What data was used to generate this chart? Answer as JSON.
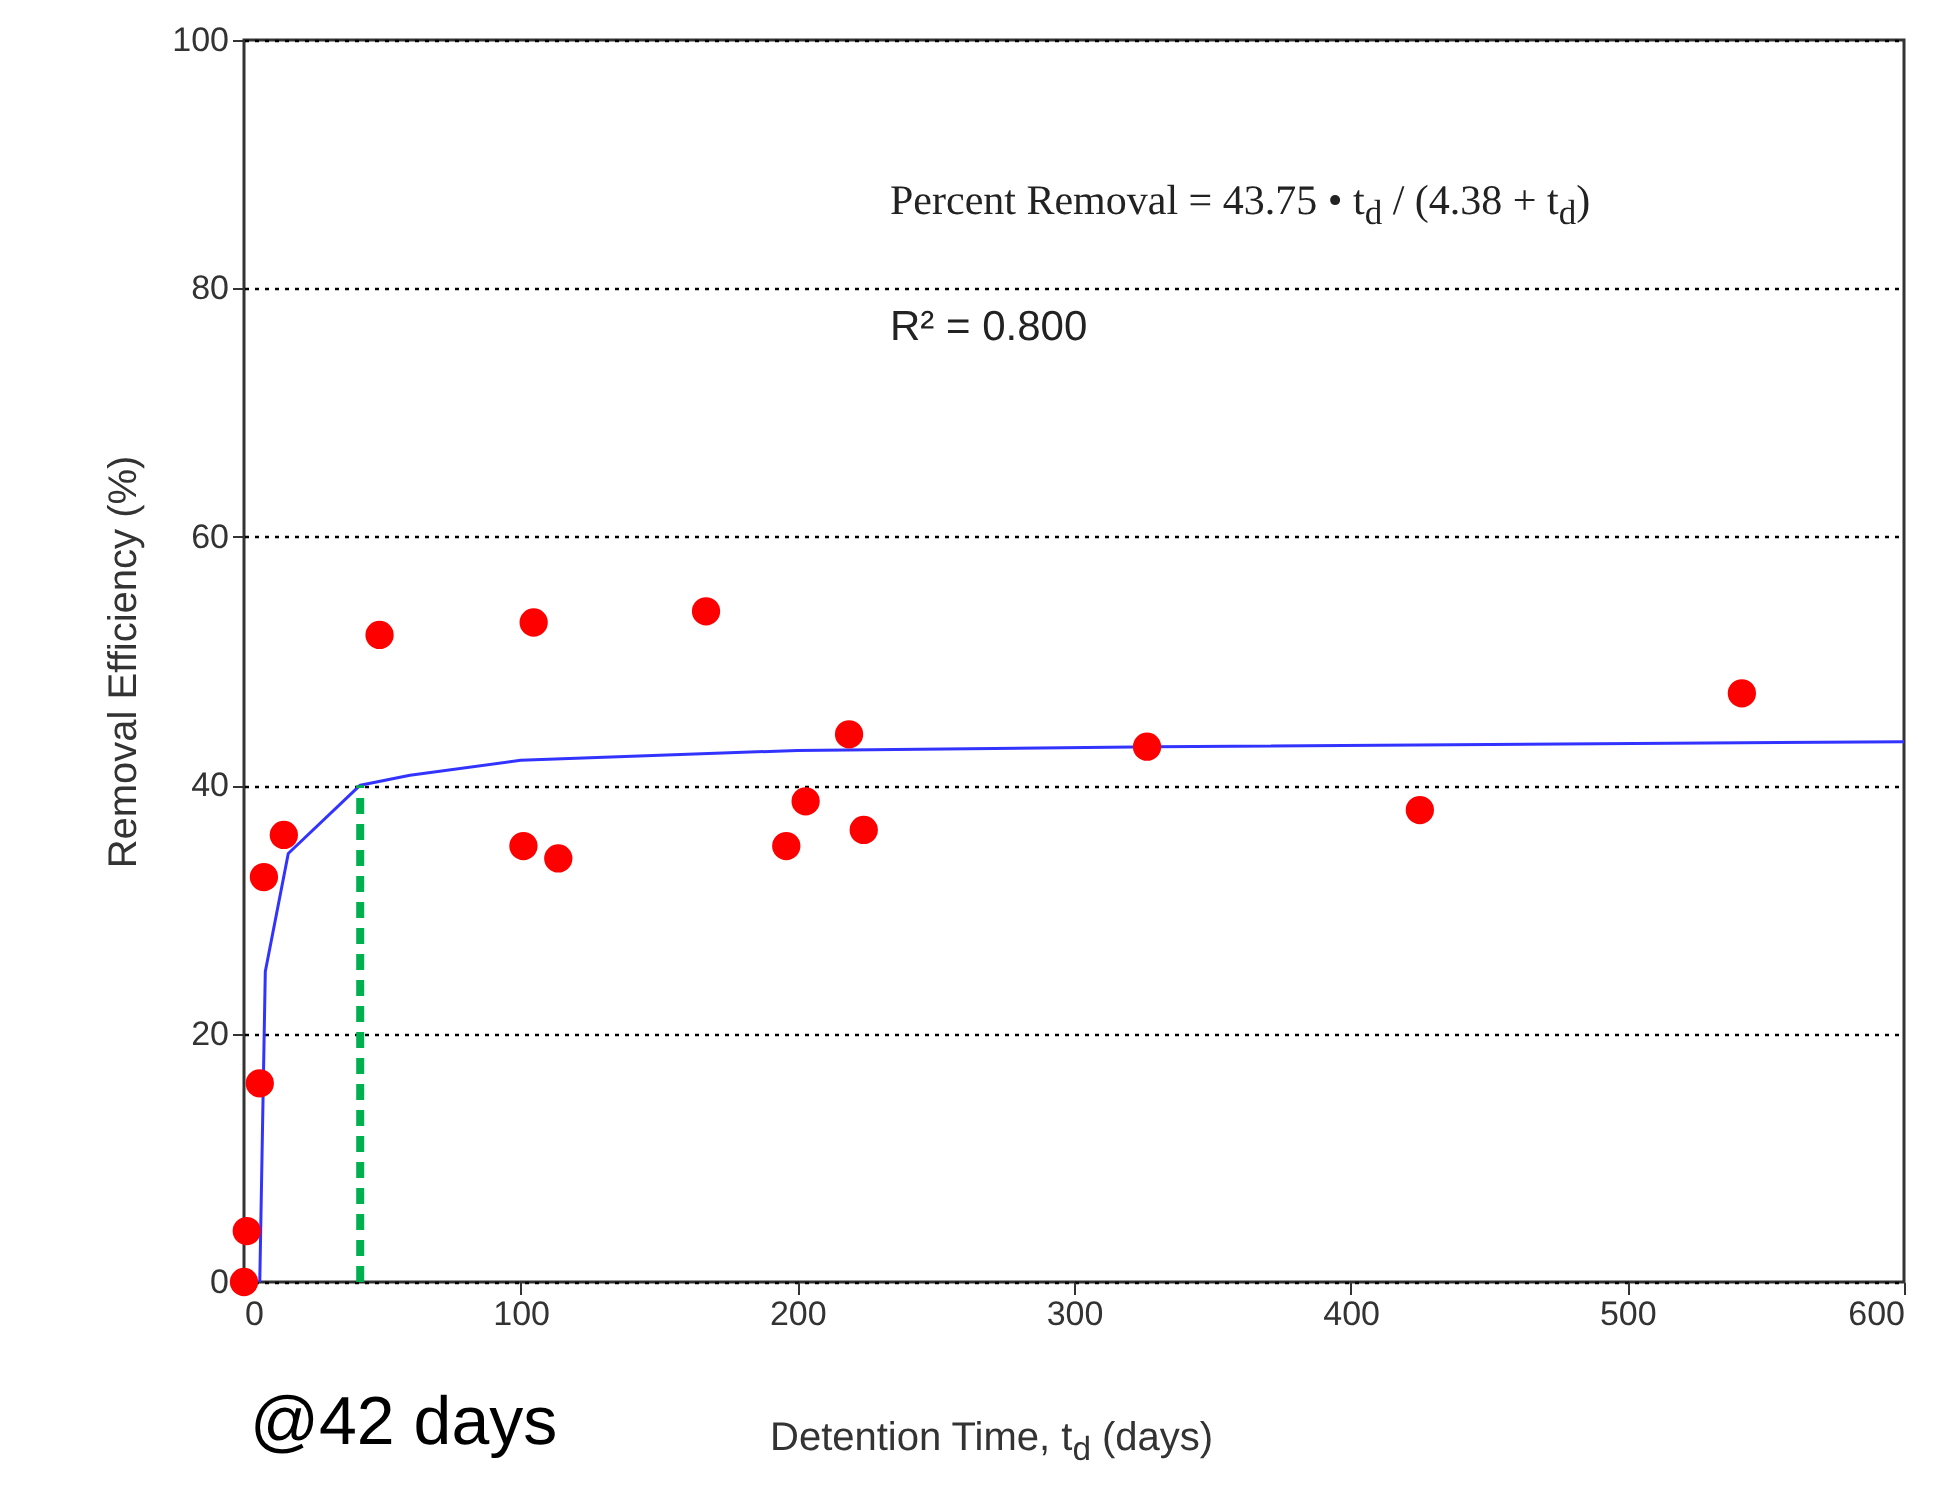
{
  "chart_data": {
    "type": "scatter",
    "xlabel": "Detention Time, t$_{d}$ (days)",
    "ylabel": "Removal Efficiency (%)",
    "xlim": [
      0,
      600
    ],
    "xticks": [
      0,
      100,
      200,
      300,
      400,
      500,
      600
    ],
    "ylim": [
      0,
      100
    ],
    "yticks": [
      0,
      20,
      40,
      60,
      80,
      100
    ],
    "grid": "y",
    "marker": "circle",
    "annotations": [
      "Percent Removal = 43.75 • t$_{d}$ / (4.38 + t$_{d}$)",
      "R² = 0.800",
      "@42 days"
    ],
    "series": [
      {
        "color": "#ff0000",
        "x": [
          0,
          1,
          5.7,
          7.2,
          14.4,
          49,
          104.7,
          101,
          113.6,
          167,
          196,
          203,
          218.7,
          224,
          326.4,
          425,
          541.4
        ],
        "values": [
          0,
          4.1,
          16,
          32.6,
          36,
          52.1,
          53.1,
          35.1,
          34.1,
          54,
          35.1,
          38.7,
          44.1,
          36.4,
          43.1,
          38,
          47.4
        ]
      },
      {
        "type": "line",
        "color": "#3333ff",
        "marker": "none",
        "x": [
          5.7,
          7.7,
          16,
          42,
          60,
          100,
          200,
          330,
          600
        ],
        "values": [
          0,
          25,
          34.5,
          40,
          40.8,
          42,
          42.8,
          43.1,
          43.5
        ]
      },
      {
        "type": "line",
        "color": "#00b050",
        "marker": "none",
        "line_style": "dashed",
        "x": [
          42,
          42
        ],
        "values": [
          0,
          40
        ]
      }
    ]
  }
}
